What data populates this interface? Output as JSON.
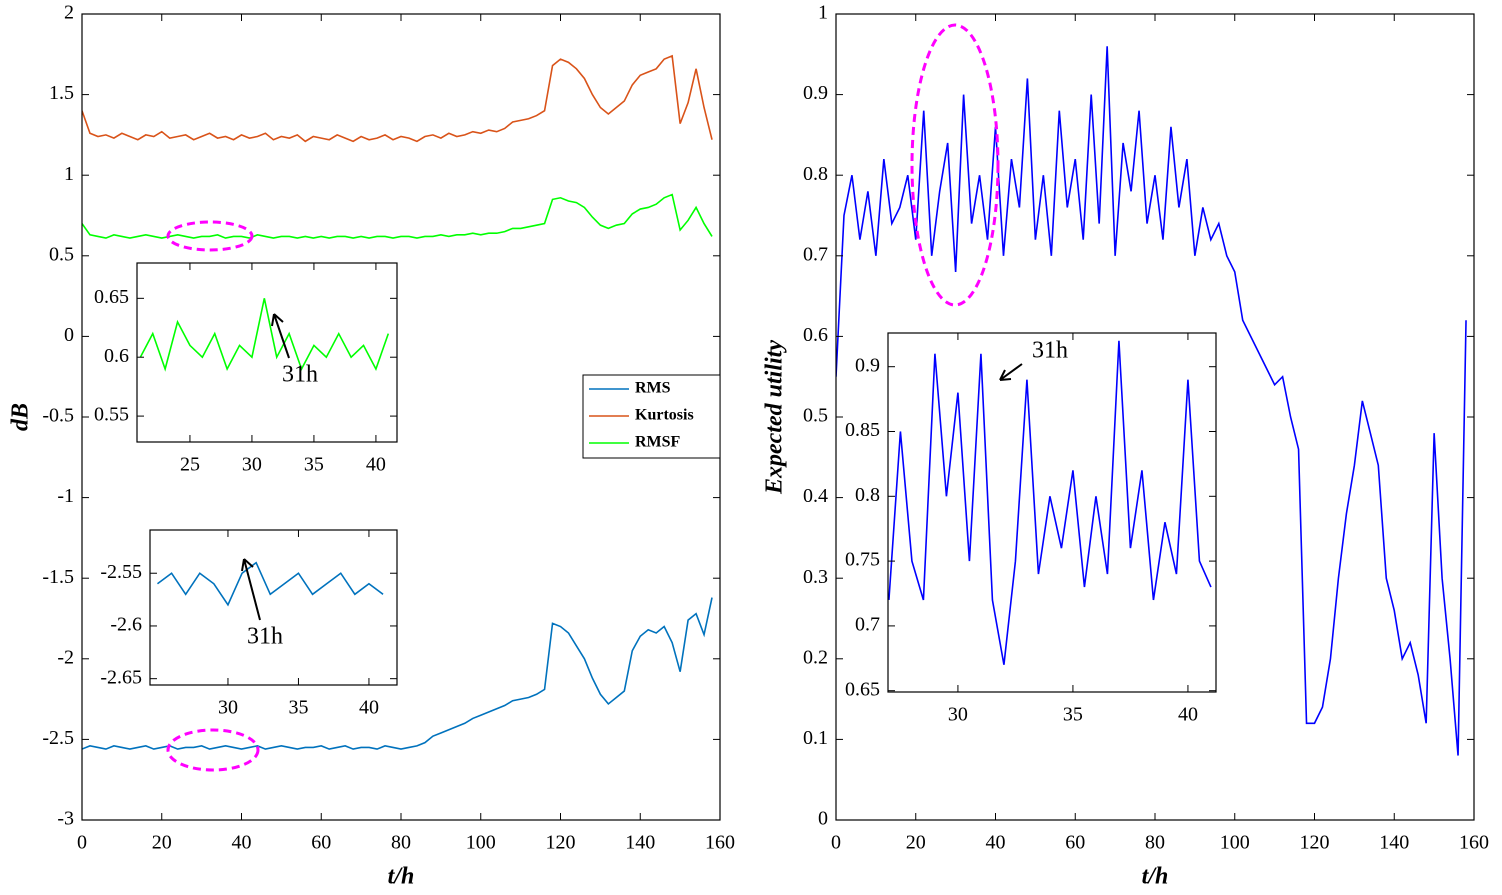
{
  "chart_data": [
    {
      "type": "line",
      "xlabel": "t/h",
      "ylabel": "dB",
      "xlim": [
        0,
        160
      ],
      "ylim": [
        -3,
        2
      ],
      "xticks": [
        0,
        20,
        40,
        60,
        80,
        100,
        120,
        140,
        160
      ],
      "yticks": [
        -3,
        -2.5,
        -2,
        -1.5,
        -1,
        -0.5,
        0,
        0.5,
        1,
        1.5,
        2
      ],
      "x": [
        0,
        2,
        4,
        6,
        8,
        10,
        12,
        14,
        16,
        18,
        20,
        22,
        24,
        26,
        28,
        30,
        32,
        34,
        36,
        38,
        40,
        42,
        44,
        46,
        48,
        50,
        52,
        54,
        56,
        58,
        60,
        62,
        64,
        66,
        68,
        70,
        72,
        74,
        76,
        78,
        80,
        82,
        84,
        86,
        88,
        90,
        92,
        94,
        96,
        98,
        100,
        102,
        104,
        106,
        108,
        110,
        112,
        114,
        116,
        118,
        120,
        122,
        124,
        126,
        128,
        130,
        132,
        134,
        136,
        138,
        140,
        142,
        144,
        146,
        148,
        150,
        152,
        154,
        156,
        158
      ],
      "series": [
        {
          "name": "RMS",
          "color": "#0072bd",
          "values": [
            -2.56,
            -2.54,
            -2.55,
            -2.56,
            -2.54,
            -2.55,
            -2.56,
            -2.55,
            -2.54,
            -2.56,
            -2.55,
            -2.54,
            -2.56,
            -2.55,
            -2.55,
            -2.54,
            -2.56,
            -2.55,
            -2.54,
            -2.55,
            -2.56,
            -2.55,
            -2.54,
            -2.56,
            -2.55,
            -2.54,
            -2.55,
            -2.56,
            -2.55,
            -2.55,
            -2.54,
            -2.56,
            -2.55,
            -2.54,
            -2.56,
            -2.55,
            -2.55,
            -2.56,
            -2.54,
            -2.55,
            -2.56,
            -2.55,
            -2.54,
            -2.52,
            -2.48,
            -2.46,
            -2.44,
            -2.42,
            -2.4,
            -2.37,
            -2.35,
            -2.33,
            -2.31,
            -2.29,
            -2.26,
            -2.25,
            -2.24,
            -2.22,
            -2.19,
            -1.78,
            -1.8,
            -1.84,
            -1.92,
            -2.0,
            -2.12,
            -2.22,
            -2.28,
            -2.24,
            -2.2,
            -1.95,
            -1.86,
            -1.82,
            -1.84,
            -1.8,
            -1.9,
            -2.08,
            -1.76,
            -1.72,
            -1.85,
            -1.62
          ]
        },
        {
          "name": "Kurtosis",
          "color": "#d95319",
          "values": [
            1.4,
            1.26,
            1.24,
            1.25,
            1.23,
            1.26,
            1.24,
            1.22,
            1.25,
            1.24,
            1.27,
            1.23,
            1.24,
            1.25,
            1.22,
            1.24,
            1.26,
            1.23,
            1.24,
            1.22,
            1.25,
            1.23,
            1.24,
            1.26,
            1.22,
            1.24,
            1.23,
            1.25,
            1.21,
            1.24,
            1.23,
            1.22,
            1.25,
            1.23,
            1.21,
            1.24,
            1.22,
            1.23,
            1.25,
            1.22,
            1.24,
            1.23,
            1.21,
            1.24,
            1.25,
            1.23,
            1.26,
            1.24,
            1.25,
            1.27,
            1.26,
            1.28,
            1.27,
            1.29,
            1.33,
            1.34,
            1.35,
            1.37,
            1.4,
            1.68,
            1.72,
            1.7,
            1.66,
            1.6,
            1.5,
            1.42,
            1.38,
            1.42,
            1.46,
            1.56,
            1.62,
            1.64,
            1.66,
            1.72,
            1.74,
            1.32,
            1.45,
            1.66,
            1.42,
            1.22
          ]
        },
        {
          "name": "RMSF",
          "color": "#00ff00",
          "values": [
            0.7,
            0.63,
            0.62,
            0.61,
            0.63,
            0.62,
            0.61,
            0.62,
            0.63,
            0.62,
            0.61,
            0.62,
            0.63,
            0.62,
            0.61,
            0.62,
            0.62,
            0.63,
            0.61,
            0.62,
            0.62,
            0.61,
            0.63,
            0.62,
            0.61,
            0.62,
            0.62,
            0.61,
            0.62,
            0.61,
            0.62,
            0.61,
            0.62,
            0.62,
            0.61,
            0.62,
            0.61,
            0.62,
            0.62,
            0.61,
            0.62,
            0.62,
            0.61,
            0.62,
            0.62,
            0.63,
            0.62,
            0.63,
            0.63,
            0.64,
            0.63,
            0.64,
            0.64,
            0.65,
            0.67,
            0.67,
            0.68,
            0.69,
            0.7,
            0.85,
            0.86,
            0.84,
            0.83,
            0.8,
            0.74,
            0.69,
            0.67,
            0.69,
            0.7,
            0.76,
            0.79,
            0.8,
            0.82,
            0.86,
            0.88,
            0.66,
            0.72,
            0.8,
            0.7,
            0.62
          ]
        }
      ]
    },
    {
      "type": "line",
      "xlim": [
        20.73,
        41.7
      ],
      "ylim": [
        0.528,
        0.68
      ],
      "xticks": [
        25,
        30,
        35,
        40
      ],
      "yticks": [
        0.55,
        0.6,
        0.65
      ],
      "annotations": [
        "31h"
      ],
      "x": [
        21,
        22,
        23,
        24,
        25,
        26,
        27,
        28,
        29,
        30,
        31,
        32,
        33,
        34,
        35,
        36,
        37,
        38,
        39,
        40,
        41
      ],
      "series": [
        {
          "name": "RMSF",
          "color": "#00ff00",
          "values": [
            0.6,
            0.62,
            0.59,
            0.63,
            0.61,
            0.6,
            0.62,
            0.59,
            0.61,
            0.6,
            0.65,
            0.6,
            0.62,
            0.59,
            0.61,
            0.6,
            0.62,
            0.6,
            0.61,
            0.59,
            0.62
          ]
        }
      ]
    },
    {
      "type": "line",
      "xlim": [
        24.47,
        41.99
      ],
      "ylim": [
        -2.656,
        -2.509
      ],
      "xticks": [
        30,
        35,
        40
      ],
      "yticks": [
        -2.65,
        -2.6,
        -2.55
      ],
      "annotations": [
        "31h"
      ],
      "x": [
        25,
        26,
        27,
        28,
        29,
        30,
        31,
        32,
        33,
        34,
        35,
        36,
        37,
        38,
        39,
        40,
        41
      ],
      "series": [
        {
          "name": "RMS",
          "color": "#0072bd",
          "values": [
            -2.56,
            -2.55,
            -2.57,
            -2.55,
            -2.56,
            -2.58,
            -2.55,
            -2.54,
            -2.57,
            -2.56,
            -2.55,
            -2.57,
            -2.56,
            -2.55,
            -2.57,
            -2.56,
            -2.57
          ]
        }
      ]
    },
    {
      "type": "line",
      "xlabel": "t/h",
      "ylabel": "Expected utility",
      "xlim": [
        0,
        160
      ],
      "ylim": [
        0,
        1
      ],
      "xticks": [
        0,
        20,
        40,
        60,
        80,
        100,
        120,
        140,
        160
      ],
      "yticks": [
        0,
        0.1,
        0.2,
        0.3,
        0.4,
        0.5,
        0.6,
        0.7,
        0.8,
        0.9,
        1
      ],
      "x": [
        0,
        2,
        4,
        6,
        8,
        10,
        12,
        14,
        16,
        18,
        20,
        22,
        24,
        26,
        28,
        30,
        32,
        34,
        36,
        38,
        40,
        42,
        44,
        46,
        48,
        50,
        52,
        54,
        56,
        58,
        60,
        62,
        64,
        66,
        68,
        70,
        72,
        74,
        76,
        78,
        80,
        82,
        84,
        86,
        88,
        90,
        92,
        94,
        96,
        98,
        100,
        102,
        104,
        106,
        108,
        110,
        112,
        114,
        116,
        118,
        120,
        122,
        124,
        126,
        128,
        130,
        132,
        134,
        136,
        138,
        140,
        142,
        144,
        146,
        148,
        150,
        152,
        154,
        156,
        158
      ],
      "series": [
        {
          "name": "Expected utility",
          "color": "#0000ff",
          "values": [
            0.55,
            0.75,
            0.8,
            0.72,
            0.78,
            0.7,
            0.82,
            0.74,
            0.76,
            0.8,
            0.72,
            0.88,
            0.7,
            0.78,
            0.84,
            0.68,
            0.9,
            0.74,
            0.8,
            0.72,
            0.86,
            0.7,
            0.82,
            0.76,
            0.92,
            0.72,
            0.8,
            0.7,
            0.88,
            0.76,
            0.82,
            0.72,
            0.9,
            0.74,
            0.96,
            0.7,
            0.84,
            0.78,
            0.88,
            0.74,
            0.8,
            0.72,
            0.86,
            0.76,
            0.82,
            0.7,
            0.76,
            0.72,
            0.74,
            0.7,
            0.68,
            0.62,
            0.6,
            0.58,
            0.56,
            0.54,
            0.55,
            0.5,
            0.46,
            0.12,
            0.12,
            0.14,
            0.2,
            0.3,
            0.38,
            0.44,
            0.52,
            0.48,
            0.44,
            0.3,
            0.26,
            0.2,
            0.22,
            0.18,
            0.12,
            0.48,
            0.3,
            0.2,
            0.08,
            0.62
          ]
        }
      ]
    },
    {
      "type": "line",
      "xlim": [
        26.96,
        41.22
      ],
      "ylim": [
        0.649,
        0.926
      ],
      "xticks": [
        30,
        35,
        40
      ],
      "yticks": [
        0.65,
        0.7,
        0.75,
        0.8,
        0.85,
        0.9
      ],
      "annotations": [
        "31h"
      ],
      "x": [
        27,
        27.5,
        28,
        28.5,
        29,
        29.5,
        30,
        30.5,
        31,
        31.5,
        32,
        32.5,
        33,
        33.5,
        34,
        34.5,
        35,
        35.5,
        36,
        36.5,
        37,
        37.5,
        38,
        38.5,
        39,
        39.5,
        40,
        40.5,
        41
      ],
      "series": [
        {
          "name": "Expected utility",
          "color": "#0000ff",
          "values": [
            0.72,
            0.85,
            0.75,
            0.72,
            0.91,
            0.8,
            0.88,
            0.75,
            0.91,
            0.72,
            0.67,
            0.75,
            0.89,
            0.74,
            0.8,
            0.76,
            0.82,
            0.73,
            0.8,
            0.74,
            0.92,
            0.76,
            0.82,
            0.72,
            0.78,
            0.74,
            0.89,
            0.75,
            0.73
          ]
        }
      ]
    }
  ]
}
